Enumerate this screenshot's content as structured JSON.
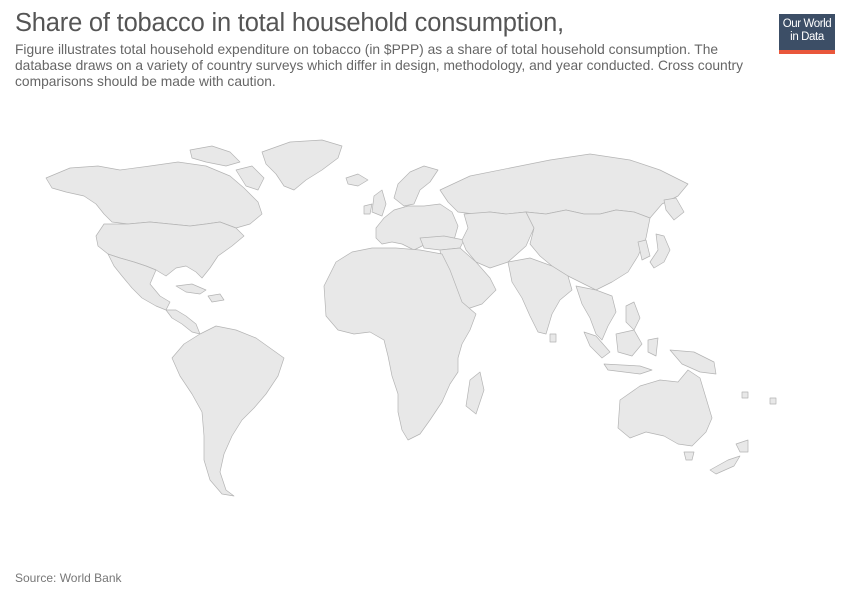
{
  "title": "Share of tobacco in total household consumption,",
  "subtitle": "Figure illustrates total household expenditure on tobacco (in $PPP) as a share of total household consumption. The database draws on a variety of country surveys which differ in design, methodology, and year conducted. Cross country comparisons should be made with caution.",
  "logo": {
    "line1": "Our World",
    "line2": "in Data",
    "bg_color": "#3c4e66",
    "accent_color": "#e9573b"
  },
  "map": {
    "fill_color": "#e8e8e8",
    "border_color": "#b4b4b4",
    "data_status": "no data"
  },
  "source": "Source: World Bank"
}
